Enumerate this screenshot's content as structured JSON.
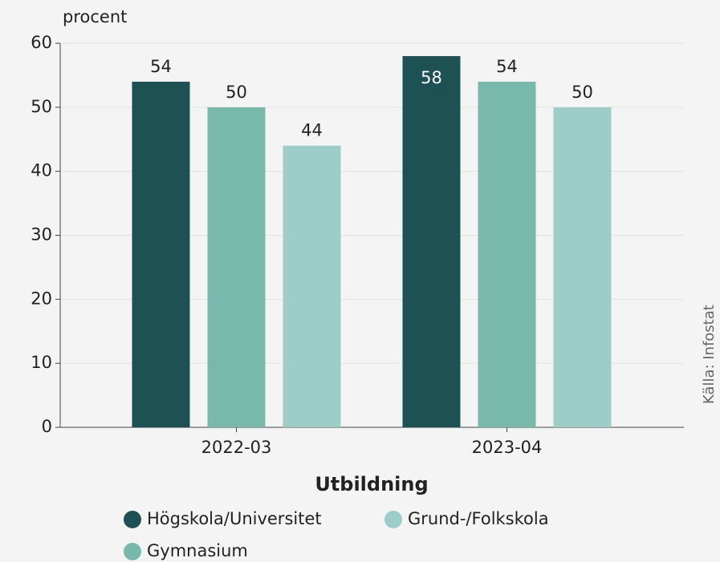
{
  "chart_data": {
    "type": "bar",
    "y_label": "procent",
    "x_label": "Utbildning",
    "source": "Källa: Infostat",
    "categories": [
      "2022-03",
      "2023-04"
    ],
    "series": [
      {
        "name": "Högskola/Universitet",
        "color": "#1d5153",
        "values": [
          54,
          58
        ]
      },
      {
        "name": "Gymnasium",
        "color": "#79b9ac",
        "values": [
          50,
          54
        ]
      },
      {
        "name": "Grund-/Folkskola",
        "color": "#9dcdc9",
        "values": [
          44,
          50
        ]
      }
    ],
    "ylim": [
      0,
      60
    ],
    "yticks": [
      0,
      10,
      20,
      30,
      40,
      50,
      60
    ],
    "grid": true,
    "legend": "bottom"
  }
}
